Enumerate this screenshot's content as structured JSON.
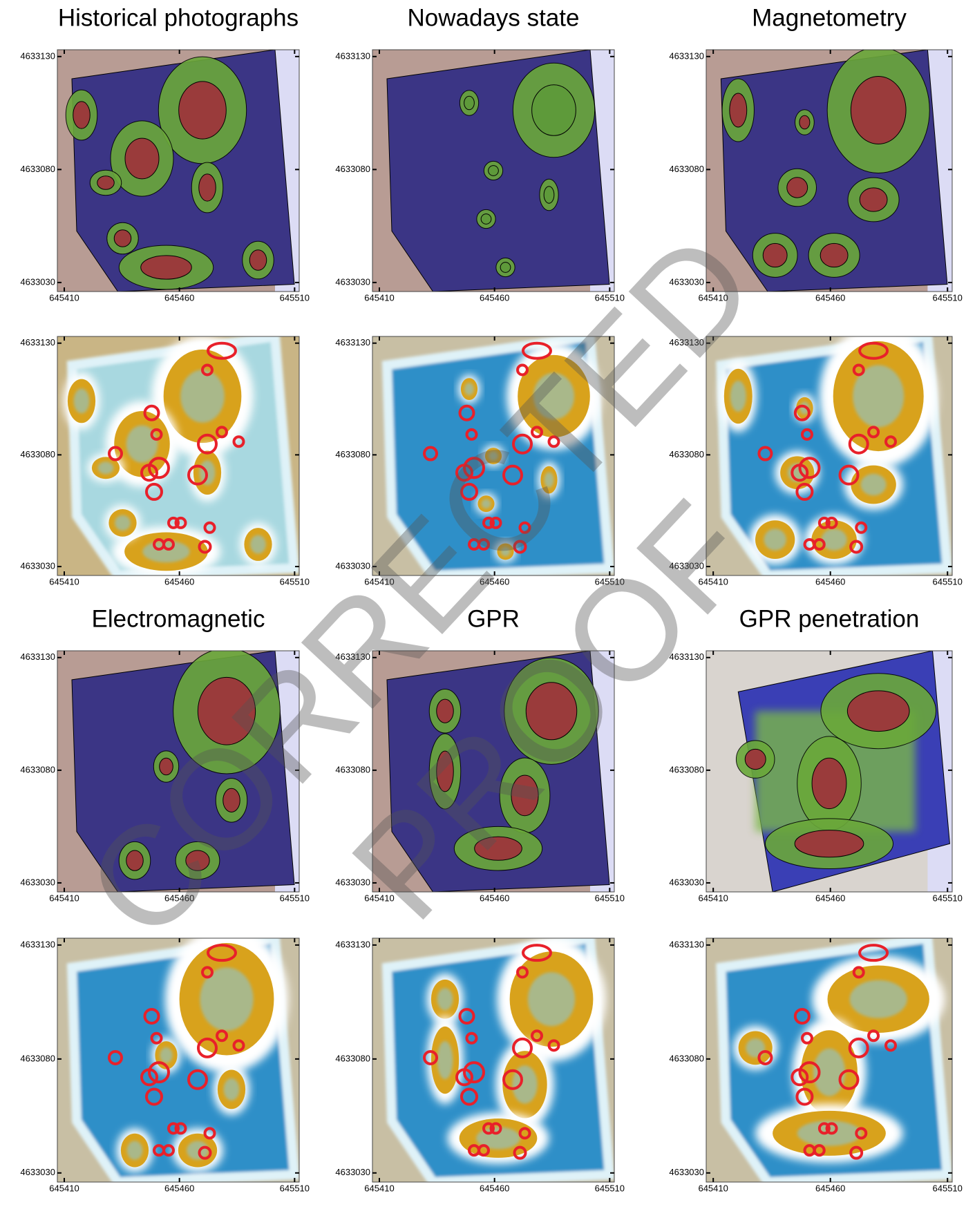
{
  "titles": [
    "Historical photographs",
    "Nowadays state",
    "Magnetometry",
    "Electromagnetic",
    "GPR",
    "GPR penetration"
  ],
  "axes": {
    "xlim": [
      645407,
      645512
    ],
    "ylim": [
      4633026,
      4633133
    ],
    "xticks": [
      645410,
      645460,
      645510
    ],
    "yticks": [
      4633030,
      4633080,
      4633130
    ]
  },
  "watermark": [
    "CORRECTED",
    "PROOF"
  ]
}
